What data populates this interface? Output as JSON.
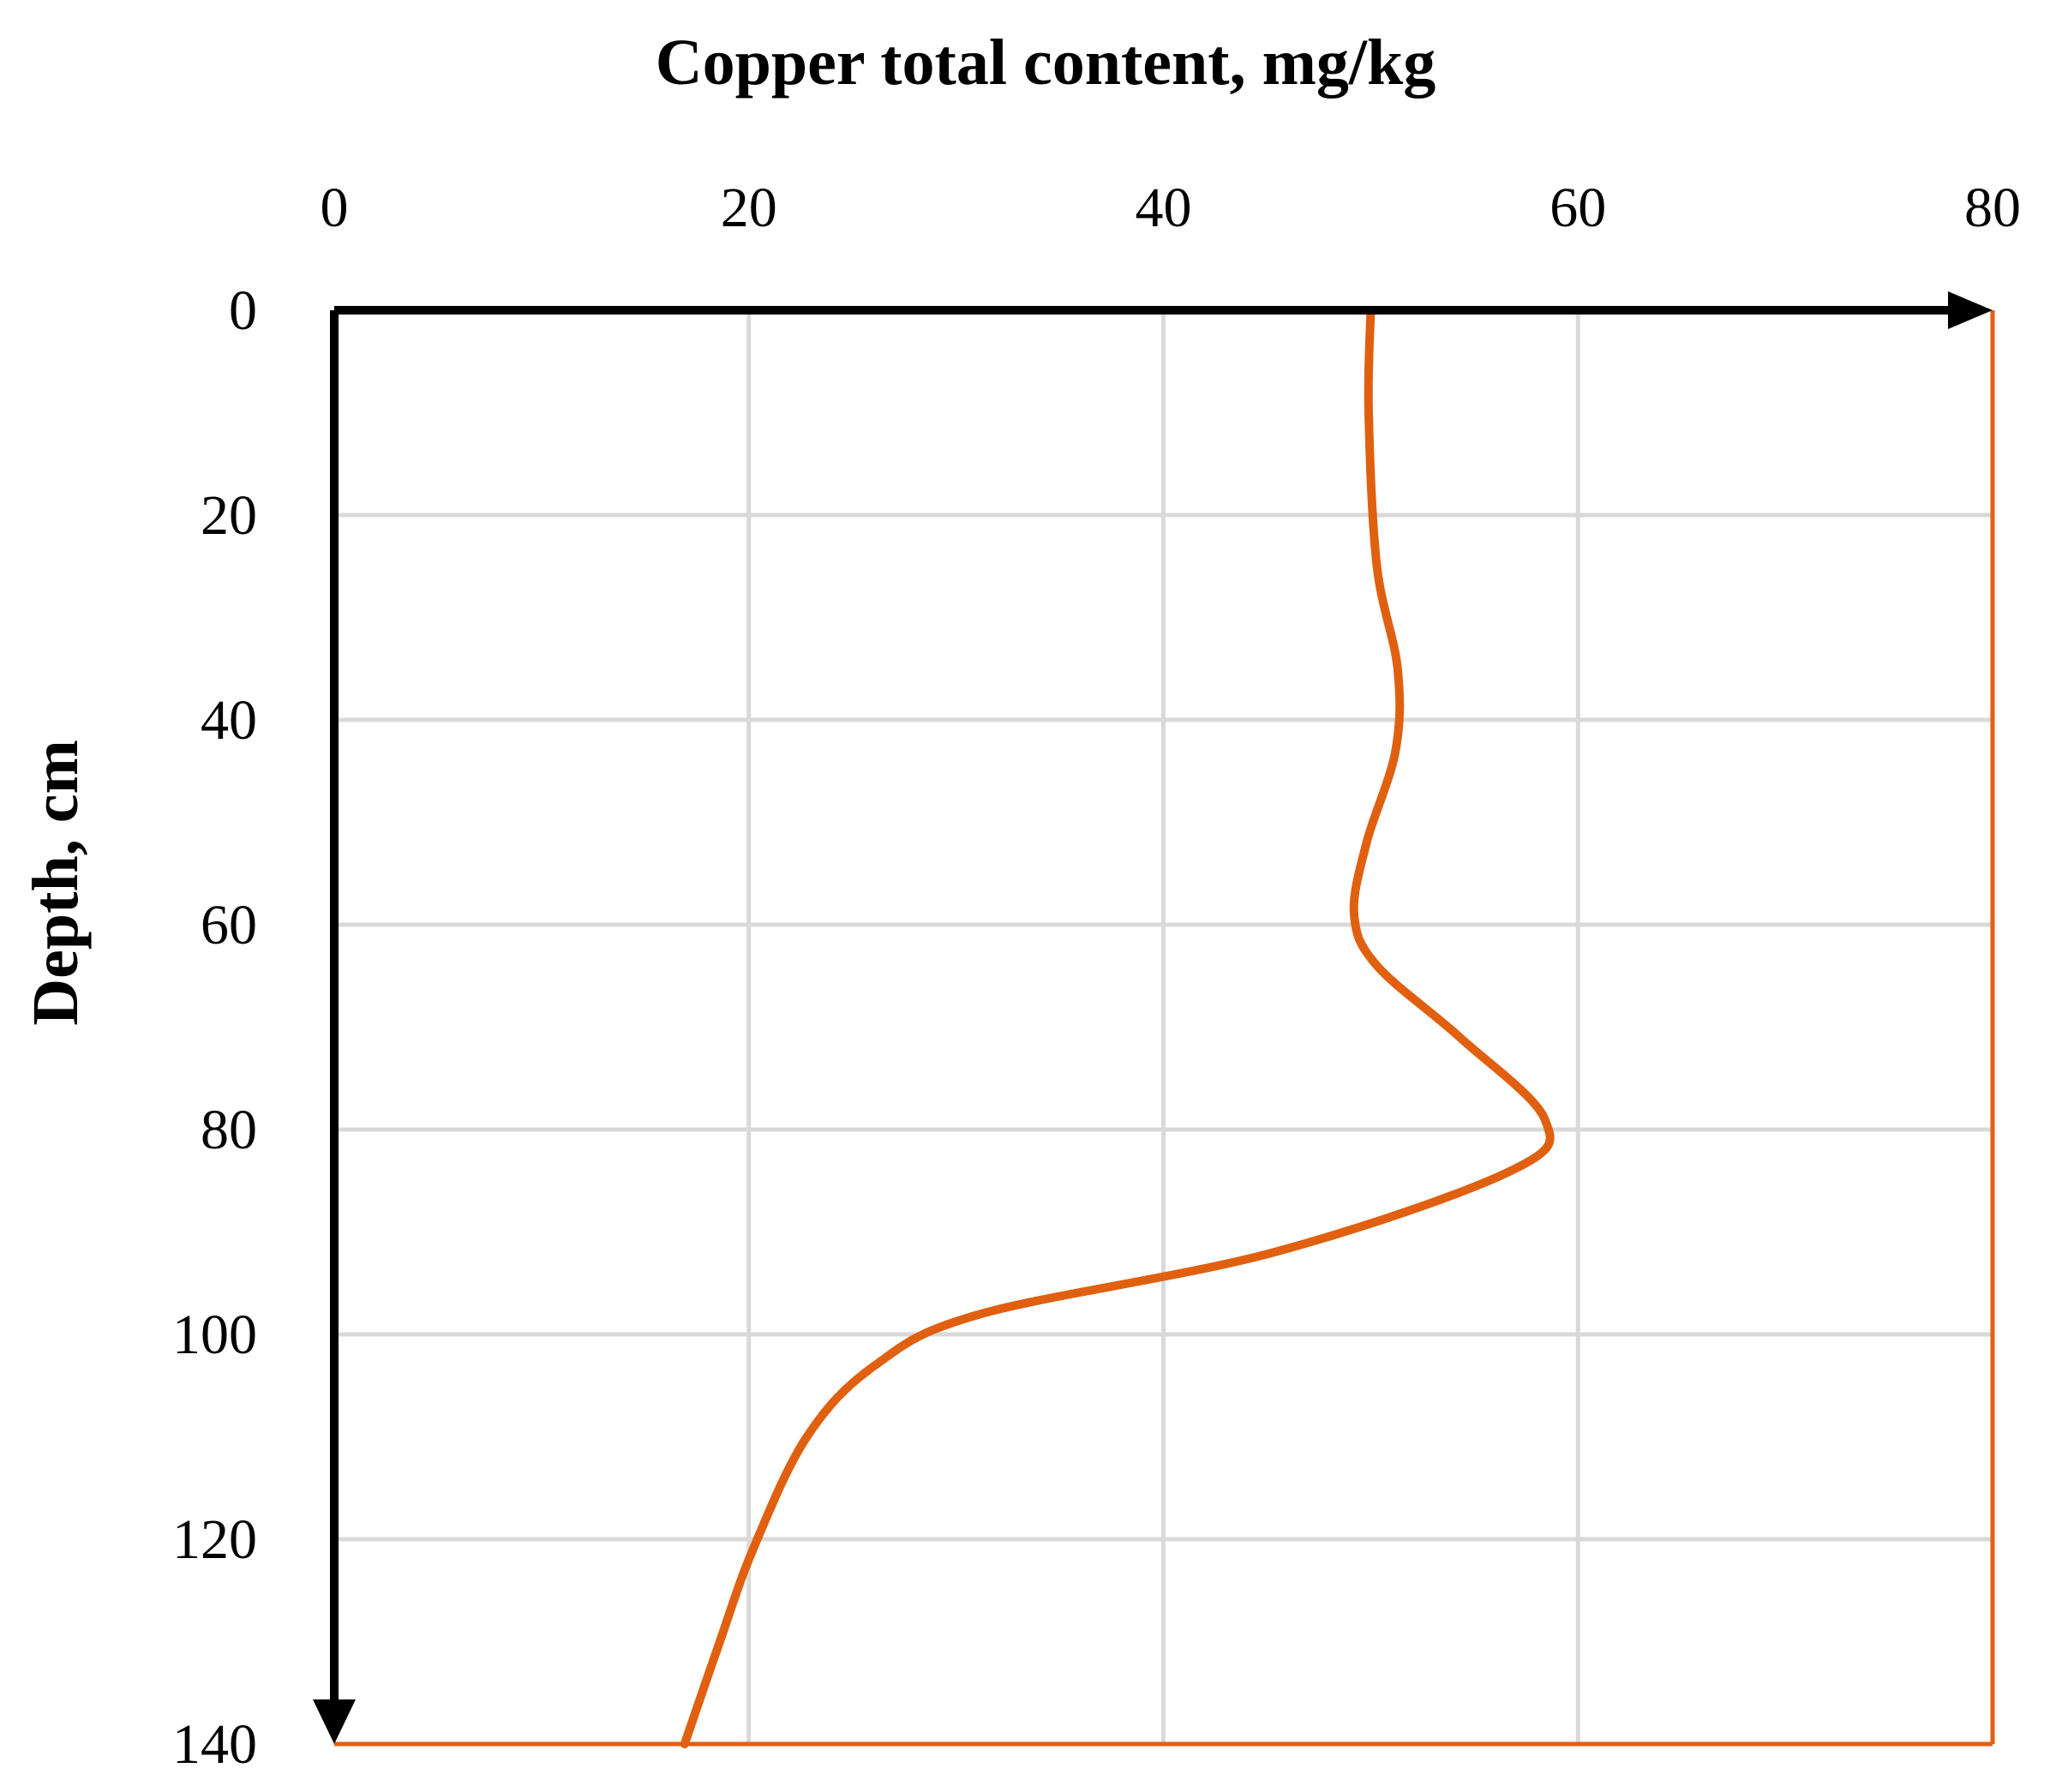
{
  "chart_data": {
    "type": "line",
    "title": "",
    "xlabel": "Copper total content, mg/kg",
    "ylabel": "Depth, cm",
    "x_axis_position": "top",
    "y_axis_inverted": true,
    "xlim": [
      0,
      80
    ],
    "ylim": [
      0,
      140
    ],
    "x_ticks": [
      "0",
      "20",
      "40",
      "60",
      "80"
    ],
    "y_ticks": [
      "0",
      "20",
      "40",
      "60",
      "80",
      "100",
      "120",
      "140"
    ],
    "grid": true,
    "legend": "none",
    "series": [
      {
        "x": [
          50,
          49.9,
          50.3,
          51.3,
          51.2,
          49.8,
          49.2,
          50.3,
          54.3,
          58.4,
          56.8,
          45.3,
          31.2,
          26.1,
          22.8,
          20.2,
          18.6,
          16.9
        ],
        "y": [
          0,
          10,
          25,
          35,
          43,
          52,
          59,
          64,
          71,
          79,
          84,
          92,
          98,
          103,
          110,
          121,
          130,
          140
        ]
      }
    ]
  },
  "colors": {
    "series_line": "#e06010",
    "frame_right_bottom": "#e06010",
    "grid": "#d9d9d9",
    "axes": "#000000"
  }
}
